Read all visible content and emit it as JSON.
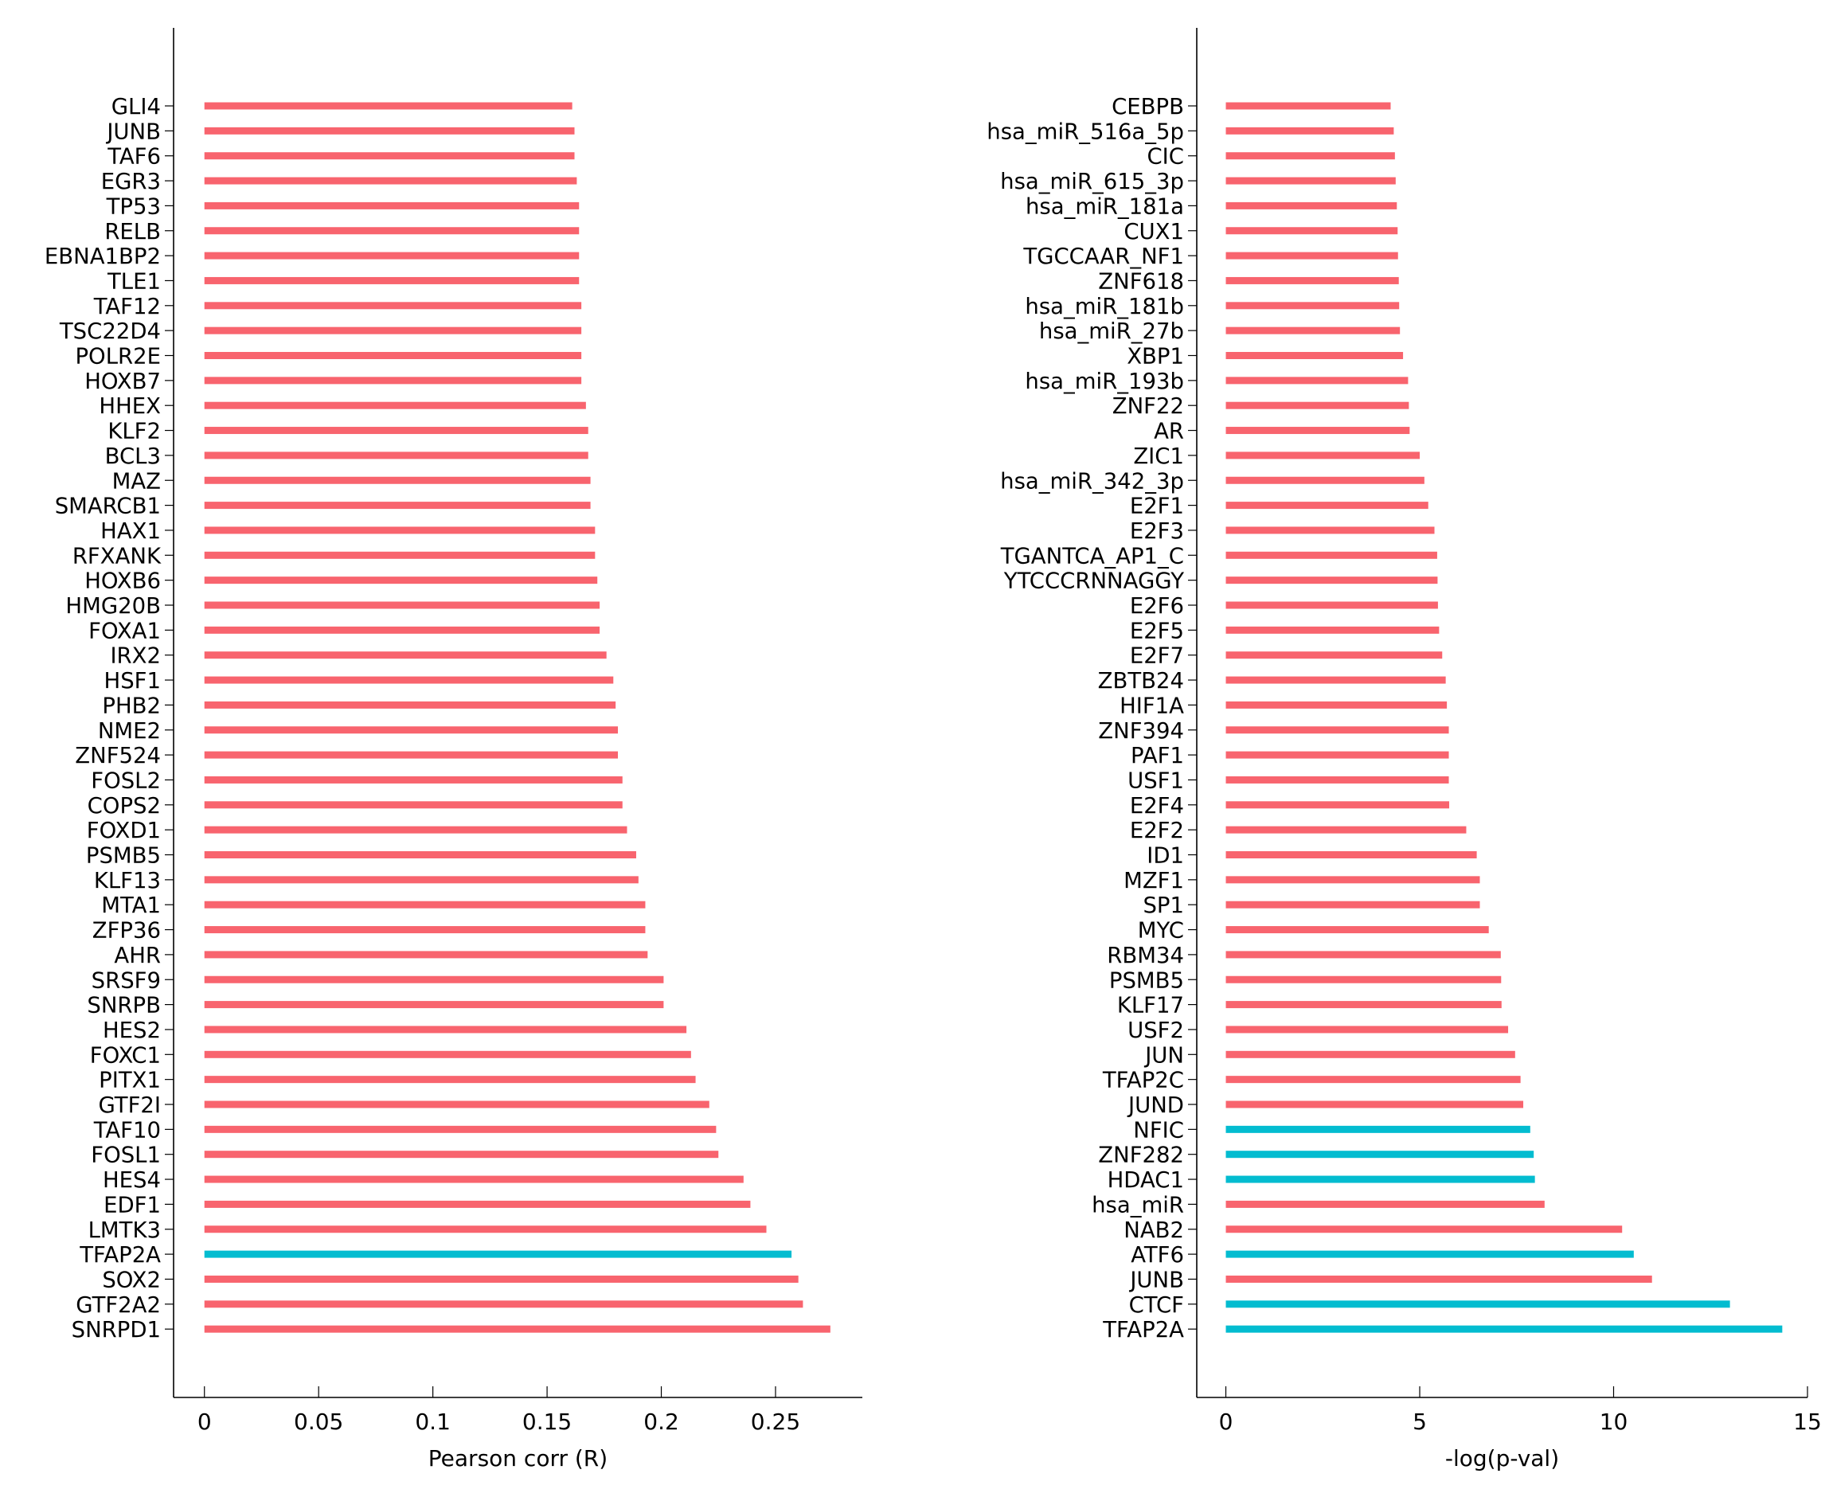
{
  "chart_data": [
    {
      "type": "bar",
      "orientation": "horizontal",
      "xlabel": "Pearson corr (R)",
      "xlim": [
        -0.0135,
        0.288
      ],
      "xticks": [
        0,
        0.05,
        0.1,
        0.15,
        0.2,
        0.25
      ],
      "xtick_labels": [
        "0",
        "0.05",
        "0.1",
        "0.15",
        "0.2",
        "0.25"
      ],
      "colors": {
        "default": "#f8646e",
        "highlight": "#03bcd0"
      },
      "categories": [
        "GLI4",
        "JUNB",
        "TAF6",
        "EGR3",
        "TP53",
        "RELB",
        "EBNA1BP2",
        "TLE1",
        "TAF12",
        "TSC22D4",
        "POLR2E",
        "HOXB7",
        "HHEX",
        "KLF2",
        "BCL3",
        "MAZ",
        "SMARCB1",
        "HAX1",
        "RFXANK",
        "HOXB6",
        "HMG20B",
        "FOXA1",
        "IRX2",
        "HSF1",
        "PHB2",
        "NME2",
        "ZNF524",
        "FOSL2",
        "COPS2",
        "FOXD1",
        "PSMB5",
        "KLF13",
        "MTA1",
        "ZFP36",
        "AHR",
        "SRSF9",
        "SNRPB",
        "HES2",
        "FOXC1",
        "PITX1",
        "GTF2I",
        "TAF10",
        "FOSL1",
        "HES4",
        "EDF1",
        "LMTK3",
        "TFAP2A",
        "SOX2",
        "GTF2A2",
        "SNRPD1"
      ],
      "values": [
        0.161,
        0.162,
        0.162,
        0.163,
        0.164,
        0.164,
        0.164,
        0.164,
        0.165,
        0.165,
        0.165,
        0.165,
        0.167,
        0.168,
        0.168,
        0.169,
        0.169,
        0.171,
        0.171,
        0.172,
        0.173,
        0.173,
        0.176,
        0.179,
        0.18,
        0.181,
        0.181,
        0.183,
        0.183,
        0.185,
        0.189,
        0.19,
        0.193,
        0.193,
        0.194,
        0.201,
        0.201,
        0.211,
        0.213,
        0.215,
        0.221,
        0.224,
        0.225,
        0.236,
        0.239,
        0.246,
        0.257,
        0.26,
        0.262,
        0.274
      ],
      "highlight": [
        false,
        false,
        false,
        false,
        false,
        false,
        false,
        false,
        false,
        false,
        false,
        false,
        false,
        false,
        false,
        false,
        false,
        false,
        false,
        false,
        false,
        false,
        false,
        false,
        false,
        false,
        false,
        false,
        false,
        false,
        false,
        false,
        false,
        false,
        false,
        false,
        false,
        false,
        false,
        false,
        false,
        false,
        false,
        false,
        false,
        false,
        true,
        false,
        false,
        false
      ]
    },
    {
      "type": "bar",
      "orientation": "horizontal",
      "xlabel": "-log(p-val)",
      "xlim": [
        -0.75,
        15.0
      ],
      "xticks": [
        0,
        5,
        10,
        15
      ],
      "xtick_labels": [
        "0",
        "5",
        "10",
        "15"
      ],
      "colors": {
        "default": "#f8646e",
        "highlight": "#03bcd0"
      },
      "categories": [
        "CEBPB",
        "hsa_miR_516a_5p",
        "CIC",
        "hsa_miR_615_3p",
        "hsa_miR_181a",
        "CUX1",
        "TGCCAAR_NF1",
        "ZNF618",
        "hsa_miR_181b",
        "hsa_miR_27b",
        "XBP1",
        "hsa_miR_193b",
        "ZNF22",
        "AR",
        "ZIC1",
        "hsa_miR_342_3p",
        "E2F1",
        "E2F3",
        "TGANTCA_AP1_C",
        "YTCCCRNNAGGY",
        "E2F6",
        "E2F5",
        "E2F7",
        "ZBTB24",
        "HIF1A",
        "ZNF394",
        "PAF1",
        "USF1",
        "E2F4",
        "E2F2",
        "ID1",
        "MZF1",
        "SP1",
        "MYC",
        "RBM34",
        "PSMB5",
        "KLF17",
        "USF2",
        "JUN",
        "TFAP2C",
        "JUND",
        "NFIC",
        "ZNF282",
        "HDAC1",
        "hsa_miR",
        "NAB2",
        "ATF6",
        "JUNB",
        "CTCF",
        "TFAP2A"
      ],
      "values": [
        4.25,
        4.33,
        4.36,
        4.38,
        4.41,
        4.43,
        4.44,
        4.46,
        4.47,
        4.49,
        4.57,
        4.7,
        4.72,
        4.74,
        5.0,
        5.12,
        5.22,
        5.38,
        5.45,
        5.46,
        5.47,
        5.5,
        5.58,
        5.67,
        5.7,
        5.75,
        5.75,
        5.75,
        5.76,
        6.2,
        6.47,
        6.55,
        6.55,
        6.78,
        7.09,
        7.1,
        7.11,
        7.28,
        7.46,
        7.6,
        7.67,
        7.85,
        7.94,
        7.97,
        8.22,
        10.22,
        10.52,
        10.99,
        13.0,
        14.35
      ],
      "highlight": [
        false,
        false,
        false,
        false,
        false,
        false,
        false,
        false,
        false,
        false,
        false,
        false,
        false,
        false,
        false,
        false,
        false,
        false,
        false,
        false,
        false,
        false,
        false,
        false,
        false,
        false,
        false,
        false,
        false,
        false,
        false,
        false,
        false,
        false,
        false,
        false,
        false,
        false,
        false,
        false,
        false,
        true,
        true,
        true,
        false,
        false,
        true,
        false,
        true,
        true
      ]
    }
  ]
}
